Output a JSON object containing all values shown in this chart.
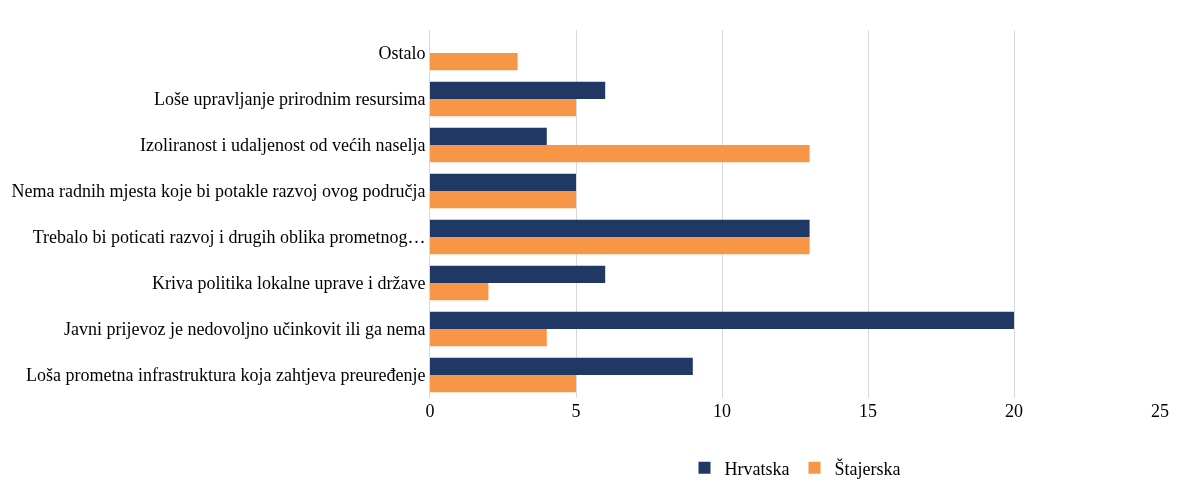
{
  "chart_data": {
    "type": "bar",
    "orientation": "horizontal",
    "categories": [
      "Ostalo",
      "Loše upravljanje prirodnim resursima",
      "Izoliranost i udaljenost od većih naselja",
      "Nema radnih mjesta koje bi potakle razvoj ovog područja",
      "Trebalo bi poticati razvoj i drugih oblika prometnog…",
      "Kriva politika lokalne uprave i države",
      "Javni prijevoz je nedovoljno učinkovit ili ga nema",
      "Loša prometna infrastruktura koja zahtjeva preuređenje"
    ],
    "series": [
      {
        "name": "Hrvatska",
        "color": "#203864",
        "values": [
          null,
          6,
          4,
          5,
          13,
          6,
          20,
          9
        ]
      },
      {
        "name": "Štajerska",
        "color": "#f79646",
        "values": [
          3,
          5,
          13,
          5,
          13,
          2,
          4,
          5
        ]
      }
    ],
    "xlim": [
      0,
      25
    ],
    "xticks": [
      0,
      5,
      10,
      15,
      20,
      25
    ],
    "grid": "x",
    "legend": "bottom"
  }
}
